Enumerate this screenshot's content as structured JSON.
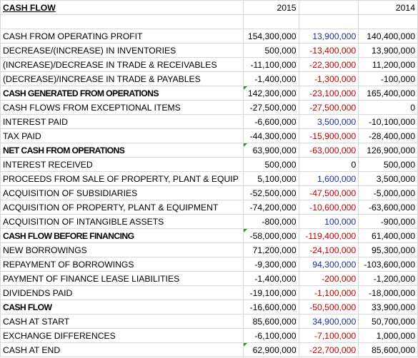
{
  "header": {
    "title": "CASH FLOW",
    "year_a": "2015",
    "year_b": "2014"
  },
  "rows": [
    {
      "label": "CASH FROM OPERATING PROFIT",
      "y2015": "154,300,000",
      "diff": "13,900,000",
      "diff_sign": "pos",
      "y2014": "140,400,000",
      "bold": false,
      "flag": false
    },
    {
      "label": "DECREASE/(INCREASE) IN INVENTORIES",
      "y2015": "500,000",
      "diff": "-13,400,000",
      "diff_sign": "neg",
      "y2014": "13,900,000",
      "bold": false,
      "flag": false
    },
    {
      "label": "(INCREASE)/DECREASE IN TRADE & RECEIVABLES",
      "y2015": "-11,100,000",
      "diff": "-22,300,000",
      "diff_sign": "neg",
      "y2014": "11,200,000",
      "bold": false,
      "flag": false
    },
    {
      "label": "(DECREASE)/INCREASE IN TRADE & PAYABLES",
      "y2015": "-1,400,000",
      "diff": "-1,300,000",
      "diff_sign": "neg",
      "y2014": "-100,000",
      "bold": false,
      "flag": false
    },
    {
      "label": "CASH GENERATED FROM OPERATIONS",
      "y2015": "142,300,000",
      "diff": "-23,100,000",
      "diff_sign": "neg",
      "y2014": "165,400,000",
      "bold": true,
      "flag": true
    },
    {
      "label": "CASH FLOWS FROM EXCEPTIONAL ITEMS",
      "y2015": "-27,500,000",
      "diff": "-27,500,000",
      "diff_sign": "neg",
      "y2014": "0",
      "bold": false,
      "flag": false
    },
    {
      "label": "INTEREST PAID",
      "y2015": "-6,600,000",
      "diff": "3,500,000",
      "diff_sign": "pos",
      "y2014": "-10,100,000",
      "bold": false,
      "flag": false
    },
    {
      "label": "TAX PAID",
      "y2015": "-44,300,000",
      "diff": "-15,900,000",
      "diff_sign": "neg",
      "y2014": "-28,400,000",
      "bold": false,
      "flag": false
    },
    {
      "label": "NET CASH FROM OPERATIONS",
      "y2015": "63,900,000",
      "diff": "-63,000,000",
      "diff_sign": "neg",
      "y2014": "126,900,000",
      "bold": true,
      "flag": true
    },
    {
      "label": "INTEREST RECEIVED",
      "y2015": "500,000",
      "diff": "0",
      "diff_sign": "zero",
      "y2014": "500,000",
      "bold": false,
      "flag": false
    },
    {
      "label": "PROCEEDS FROM SALE OF PROPERTY, PLANT & EQUIP",
      "y2015": "5,100,000",
      "diff": "1,600,000",
      "diff_sign": "pos",
      "y2014": "3,500,000",
      "bold": false,
      "flag": false
    },
    {
      "label": "ACQUISITION OF SUBSIDIARIES",
      "y2015": "-52,500,000",
      "diff": "-47,500,000",
      "diff_sign": "neg",
      "y2014": "-5,000,000",
      "bold": false,
      "flag": false
    },
    {
      "label": "ACQUISITION OF PROPERTY, PLANT & EQUIPMENT",
      "y2015": "-74,200,000",
      "diff": "-10,600,000",
      "diff_sign": "neg",
      "y2014": "-63,600,000",
      "bold": false,
      "flag": false
    },
    {
      "label": "ACQUISITION OF INTANGIBLE ASSETS",
      "y2015": "-800,000",
      "diff": "100,000",
      "diff_sign": "pos",
      "y2014": "-900,000",
      "bold": false,
      "flag": false
    },
    {
      "label": "CASH FLOW BEFORE FINANCING",
      "y2015": "-58,000,000",
      "diff": "-119,400,000",
      "diff_sign": "neg",
      "y2014": "61,400,000",
      "bold": true,
      "flag": true
    },
    {
      "label": "NEW BORROWINGS",
      "y2015": "71,200,000",
      "diff": "-24,100,000",
      "diff_sign": "neg",
      "y2014": "95,300,000",
      "bold": false,
      "flag": false
    },
    {
      "label": "REPAYMENT OF BORROWINGS",
      "y2015": "-9,300,000",
      "diff": "94,300,000",
      "diff_sign": "pos",
      "y2014": "-103,600,000",
      "bold": false,
      "flag": false
    },
    {
      "label": "PAYMENT OF FINANCE LEASE LIABILITIES",
      "y2015": "-1,400,000",
      "diff": "-200,000",
      "diff_sign": "neg",
      "y2014": "-1,200,000",
      "bold": false,
      "flag": false
    },
    {
      "label": "DIVIDENDS PAID",
      "y2015": "-19,100,000",
      "diff": "-1,100,000",
      "diff_sign": "neg",
      "y2014": "-18,000,000",
      "bold": false,
      "flag": false
    },
    {
      "label": "CASH FLOW",
      "y2015": "-16,600,000",
      "diff": "-50,500,000",
      "diff_sign": "neg",
      "y2014": "33,900,000",
      "bold": true,
      "flag": false
    },
    {
      "label": "CASH AT START",
      "y2015": "85,600,000",
      "diff": "34,900,000",
      "diff_sign": "pos",
      "y2014": "50,700,000",
      "bold": false,
      "flag": false
    },
    {
      "label": "EXCHANGE DIFFERENCES",
      "y2015": "-6,100,000",
      "diff": "-7,100,000",
      "diff_sign": "neg",
      "y2014": "1,000,000",
      "bold": false,
      "flag": false
    },
    {
      "label": "CASH AT END",
      "y2015": "62,900,000",
      "diff": "-22,700,000",
      "diff_sign": "neg",
      "y2014": "85,600,000",
      "bold": false,
      "flag": true
    }
  ],
  "colors": {
    "negative": "#c00000",
    "positive": "#1f2fa0",
    "gridline": "#d9d9d9",
    "flag": "#2e8b2e"
  }
}
